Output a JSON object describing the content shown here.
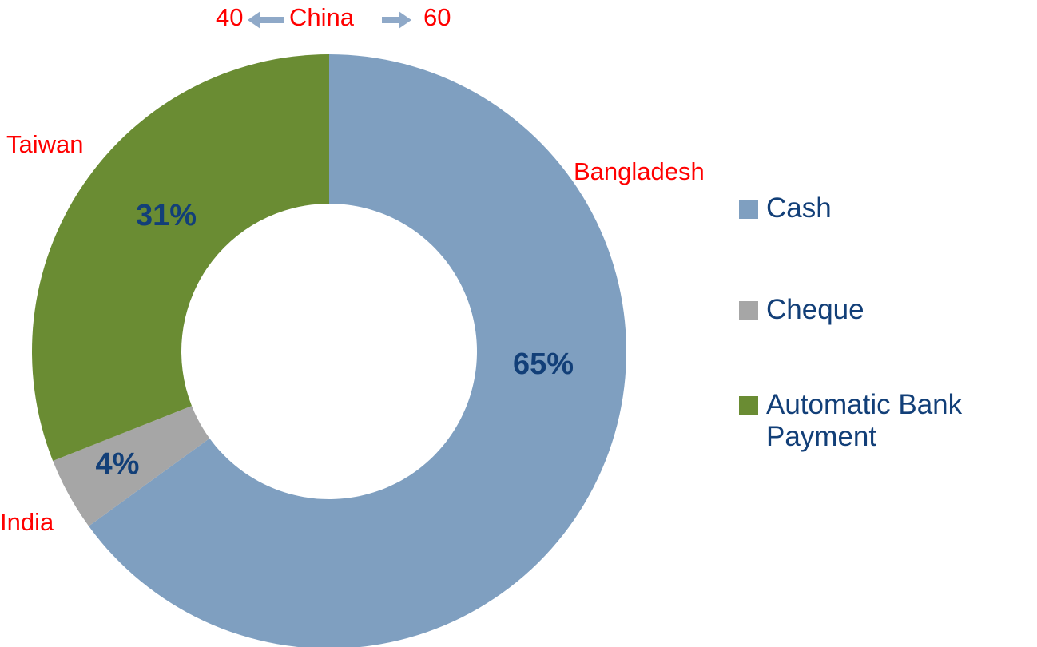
{
  "chart_data": {
    "type": "donut",
    "categories": [
      "Cash",
      "Cheque",
      "Automatic Bank Payment"
    ],
    "values": [
      65,
      4,
      31
    ],
    "value_labels": [
      "65%",
      "4%",
      "31%"
    ],
    "colors": [
      "#7f9fc0",
      "#a6a6a6",
      "#6a8c33"
    ],
    "legend": "right",
    "annotations": [
      "40",
      "China",
      "60",
      "Taiwan",
      "Bangladesh",
      "India"
    ]
  }
}
